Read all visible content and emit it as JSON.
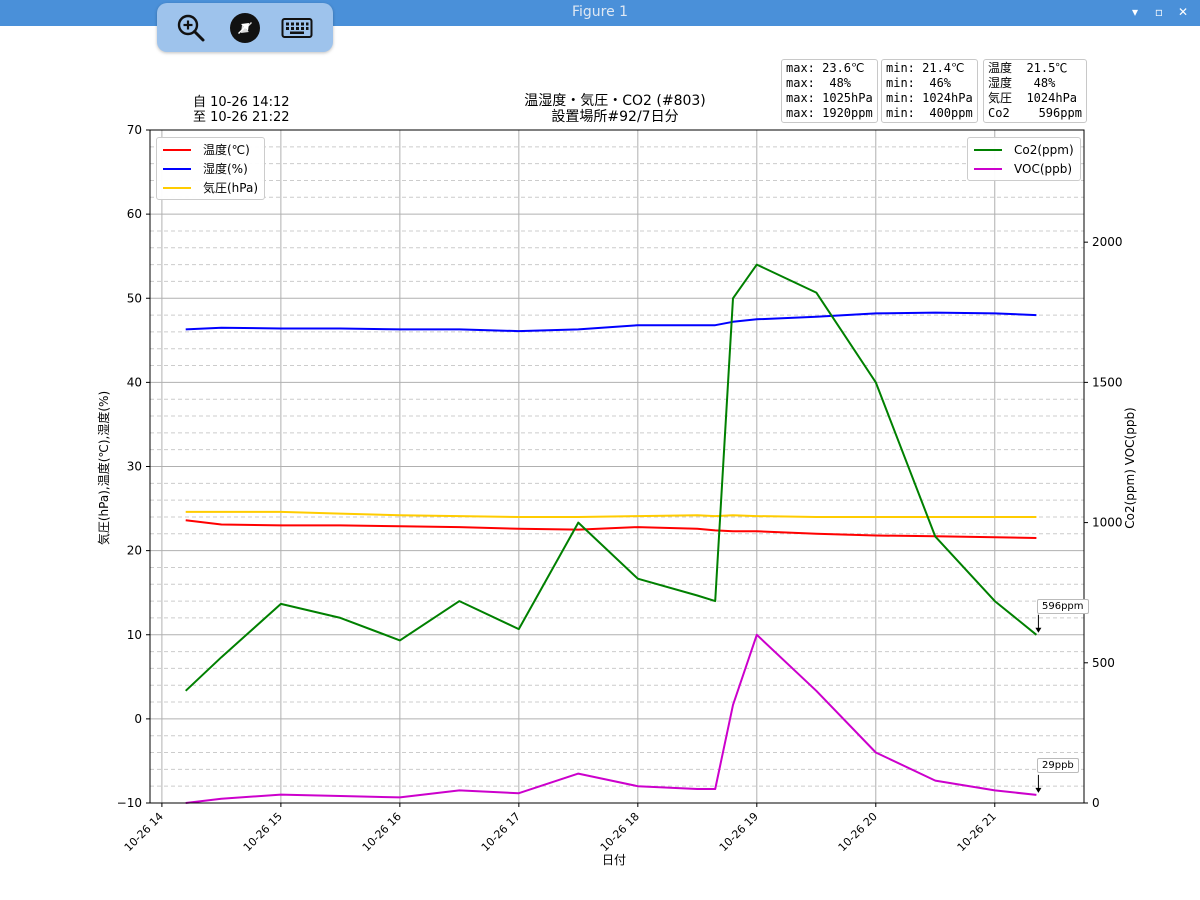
{
  "window": {
    "title": "Figure 1"
  },
  "toolbar": {
    "icons": [
      "zoom-in-icon",
      "remote-desktop-icon",
      "keyboard-icon"
    ]
  },
  "stats": {
    "max_lines": [
      "max: 23.6℃",
      "max:  48%",
      "max: 1025hPa",
      "max: 1920ppm"
    ],
    "min_lines": [
      "min: 21.4℃",
      "min:  46%",
      "min: 1024hPa",
      "min:  400ppm"
    ],
    "cur_lines": [
      "温度  21.5℃",
      "湿度   48%",
      "気圧  1024hPa",
      "Co2    596ppm"
    ]
  },
  "range": {
    "from": "自 10-26 14:12",
    "to": "至 10-26 21:22"
  },
  "callouts": {
    "co2": "596ppm",
    "voc": "29ppb"
  },
  "chart_data": {
    "type": "line",
    "title": "温湿度・気圧・CO2 (#803)",
    "subtitle": "設置場所#92/7日分",
    "xlabel": "日付",
    "ylabel": "気圧(hPa),温度(℃),湿度(%)",
    "ylabel_right": "Co2(ppm) VOC(ppb)",
    "xticks": [
      "10-26 14",
      "10-26 15",
      "10-26 16",
      "10-26 17",
      "10-26 18",
      "10-26 19",
      "10-26 20",
      "10-26 21"
    ],
    "ylim": [
      -10,
      70
    ],
    "yticks": [
      -10,
      0,
      10,
      20,
      30,
      40,
      50,
      60,
      70
    ],
    "ylim_right": [
      0,
      2400
    ],
    "yticks_right": [
      0,
      500,
      1000,
      1500,
      2000
    ],
    "x": [
      14.2,
      14.5,
      15.0,
      15.5,
      16.0,
      16.5,
      17.0,
      17.5,
      18.0,
      18.5,
      18.65,
      18.8,
      19.0,
      19.5,
      20.0,
      20.5,
      21.0,
      21.35
    ],
    "series": [
      {
        "name": "温度(℃)",
        "axis": "left",
        "color": "#ff0000",
        "values": [
          23.6,
          23.1,
          23.0,
          23.0,
          22.9,
          22.8,
          22.6,
          22.5,
          22.8,
          22.6,
          22.4,
          22.3,
          22.3,
          22.0,
          21.8,
          21.7,
          21.6,
          21.5
        ]
      },
      {
        "name": "湿度(%)",
        "axis": "left",
        "color": "#0000ff",
        "values": [
          46.3,
          46.5,
          46.4,
          46.4,
          46.3,
          46.3,
          46.1,
          46.3,
          46.8,
          46.8,
          46.8,
          47.2,
          47.5,
          47.8,
          48.2,
          48.3,
          48.2,
          48.0
        ]
      },
      {
        "name": "気圧(hPa)",
        "axis": "left",
        "color": "#ffcc00",
        "values": [
          24.6,
          24.6,
          24.6,
          24.4,
          24.2,
          24.1,
          24.0,
          24.0,
          24.1,
          24.2,
          24.1,
          24.2,
          24.1,
          24.0,
          24.0,
          24.0,
          24.0,
          24.0
        ]
      },
      {
        "name": "Co2(ppm)",
        "axis": "right",
        "color": "#008000",
        "values": [
          400,
          520,
          710,
          660,
          580,
          720,
          620,
          1000,
          800,
          740,
          720,
          1800,
          1920,
          1820,
          1500,
          950,
          720,
          600
        ]
      },
      {
        "name": "VOC(ppb)",
        "axis": "right",
        "color": "#cc00cc",
        "values": [
          0,
          15,
          30,
          25,
          20,
          45,
          35,
          105,
          60,
          50,
          50,
          350,
          600,
          400,
          180,
          80,
          45,
          29
        ]
      }
    ],
    "grid": true,
    "legend_left": "top-left",
    "legend_right": "top-right"
  }
}
